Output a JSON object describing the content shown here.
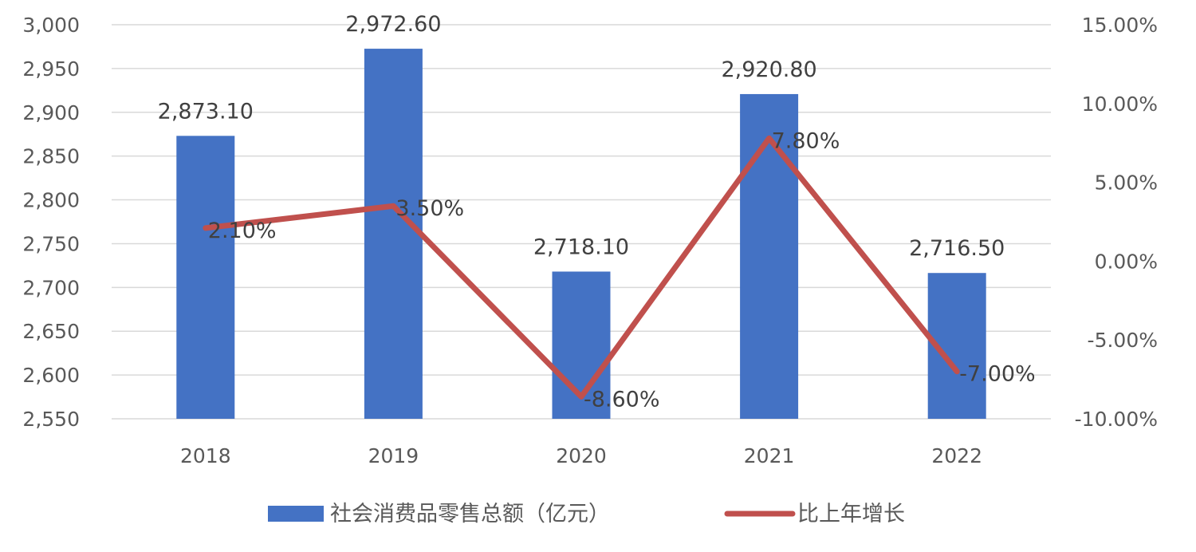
{
  "chart_data": {
    "type": "bar",
    "categories": [
      "2018",
      "2019",
      "2020",
      "2021",
      "2022"
    ],
    "series": [
      {
        "name": "社会消费品零售总额（亿元）",
        "type": "bar",
        "axis": "left",
        "color": "#4472C4",
        "values": [
          2873.1,
          2972.6,
          2718.1,
          2920.8,
          2716.5
        ],
        "labels": [
          "2,873.10",
          "2,972.60",
          "2,718.10",
          "2,920.80",
          "2,716.50"
        ]
      },
      {
        "name": "比上年增长",
        "type": "line",
        "axis": "right",
        "color": "#C0504D",
        "values": [
          2.1,
          3.5,
          -8.6,
          7.8,
          -7.0
        ],
        "labels": [
          "2.10%",
          "3.50%",
          "-8.60%",
          "7.80%",
          "-7.00%"
        ]
      }
    ],
    "y_left": {
      "ylim": [
        2550,
        3000
      ],
      "ticks": [
        "2,550",
        "2,600",
        "2,650",
        "2,700",
        "2,750",
        "2,800",
        "2,850",
        "2,900",
        "2,950",
        "3,000"
      ]
    },
    "y_right": {
      "ylim": [
        -10,
        15
      ],
      "ticks": [
        "-10.00%",
        "-5.00%",
        "0.00%",
        "5.00%",
        "10.00%",
        "15.00%"
      ]
    },
    "grid": true,
    "legend_position": "bottom"
  }
}
